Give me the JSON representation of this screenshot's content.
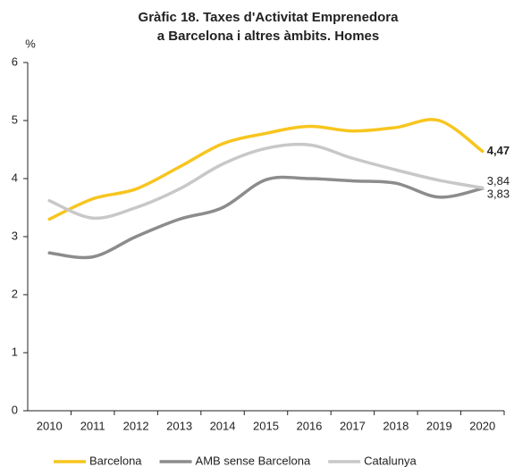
{
  "chart_data": {
    "type": "line",
    "title": [
      "Gràfic 18.  Taxes d'Activitat Emprenedora",
      "a Barcelona i altres àmbits. Homes"
    ],
    "y_label": "%",
    "categories": [
      "2010",
      "2011",
      "2012",
      "2013",
      "2014",
      "2015",
      "2016",
      "2017",
      "2018",
      "2019",
      "2020"
    ],
    "series": [
      {
        "name": "Barcelona",
        "color": "#f7c51e",
        "values": [
          3.3,
          3.65,
          3.82,
          4.2,
          4.6,
          4.78,
          4.9,
          4.82,
          4.88,
          5.0,
          4.47
        ],
        "value_labels": [
          null,
          null,
          null,
          null,
          null,
          null,
          null,
          null,
          null,
          null,
          "4,47"
        ]
      },
      {
        "name": "AMB sense Barcelona",
        "color": "#8c8c8c",
        "values": [
          2.72,
          2.65,
          3.0,
          3.3,
          3.5,
          3.98,
          4.0,
          3.96,
          3.92,
          3.68,
          3.83
        ],
        "value_labels": [
          null,
          null,
          null,
          null,
          null,
          null,
          null,
          null,
          null,
          null,
          "3,83"
        ]
      },
      {
        "name": "Catalunya",
        "color": "#c8c8c8",
        "values": [
          3.62,
          3.32,
          3.5,
          3.82,
          4.25,
          4.52,
          4.58,
          4.35,
          4.15,
          3.97,
          3.84
        ],
        "value_labels": [
          null,
          null,
          null,
          null,
          null,
          null,
          null,
          null,
          null,
          null,
          "3,84"
        ]
      }
    ],
    "ylim": [
      0,
      6
    ],
    "yticks": [
      0,
      1,
      2,
      3,
      4,
      5,
      6
    ],
    "grid": false,
    "legend": "bottom"
  }
}
